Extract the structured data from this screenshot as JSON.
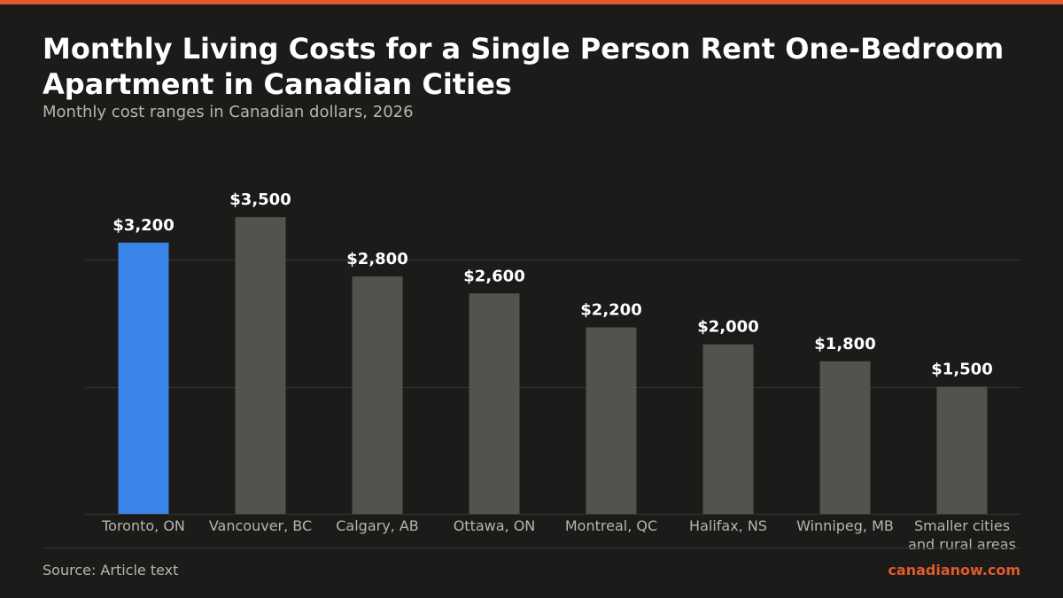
{
  "colors": {
    "background": "#1b1b1a",
    "accent_bar": "#e05a2b",
    "highlight_bar": "#3a86e8",
    "default_bar": "#53524c",
    "gridline": "#363634",
    "title": "#ffffff",
    "muted_text": "#b8b5ad",
    "brand": "#e05a2b"
  },
  "header": {
    "title": "Monthly Living Costs for a Single Person Rent One-Bedroom Apartment in Canadian Cities",
    "subtitle": "Monthly cost ranges in Canadian dollars, 2026"
  },
  "footer": {
    "source": "Source: Article text",
    "brand": "canadianow.com"
  },
  "chart_data": {
    "type": "bar",
    "categories": [
      "Toronto, ON",
      "Vancouver, BC",
      "Calgary, AB",
      "Ottawa, ON",
      "Montreal, QC",
      "Halifax, NS",
      "Winnipeg, MB",
      "Smaller cities and rural areas"
    ],
    "values": [
      3200,
      3500,
      2800,
      2600,
      2200,
      2000,
      1800,
      1500
    ],
    "data_labels": [
      "$3,200",
      "$3,500",
      "$2,800",
      "$2,600",
      "$2,200",
      "$2,000",
      "$1,800",
      "$1,500"
    ],
    "highlighted_category": "Toronto, ON",
    "ylim": [
      0,
      4500
    ],
    "gridlines": [
      1500,
      3000
    ],
    "grid": true,
    "legend": "none"
  }
}
